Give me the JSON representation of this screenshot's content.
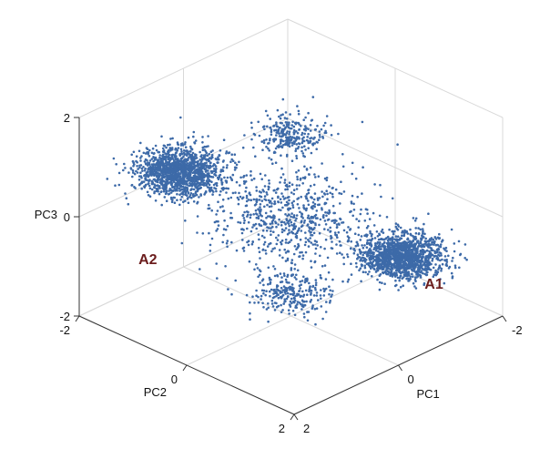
{
  "chart_data": {
    "type": "scatter",
    "projection": "3d",
    "title": "",
    "axes": {
      "x": {
        "label": "PC1",
        "range": [
          -2,
          2
        ],
        "ticks": [
          {
            "value": 2,
            "text": "2"
          },
          {
            "value": 0,
            "text": "0"
          },
          {
            "value": -2,
            "text": "-2"
          }
        ]
      },
      "y": {
        "label": "PC2",
        "range": [
          -2,
          2
        ],
        "ticks": [
          {
            "value": -2,
            "text": "-2"
          },
          {
            "value": 0,
            "text": "0"
          },
          {
            "value": 2,
            "text": "2"
          }
        ]
      },
      "z": {
        "label": "PC3",
        "range": [
          -2,
          2
        ],
        "ticks": [
          {
            "value": 2,
            "text": "2"
          },
          {
            "value": 0,
            "text": "0"
          },
          {
            "value": -2,
            "text": "-2"
          }
        ]
      }
    },
    "grid": true,
    "marker_color": "#3d6aa8",
    "annotations": [
      {
        "text": "A1",
        "x": -1.3,
        "y": 1.4,
        "z": -1.4
      },
      {
        "text": "A2",
        "x": 1.2,
        "y": -1.5,
        "z": -1.1
      }
    ],
    "clusters": [
      {
        "center": [
          -1.05,
          1.05,
          -0.8
        ],
        "spread": [
          0.28,
          0.28,
          0.12
        ],
        "count": 1400
      },
      {
        "center": [
          1.05,
          -1.05,
          0.9
        ],
        "spread": [
          0.28,
          0.28,
          0.15
        ],
        "count": 1400
      },
      {
        "center": [
          -0.6,
          -0.6,
          1.05
        ],
        "spread": [
          0.25,
          0.25,
          0.12
        ],
        "count": 260
      },
      {
        "center": [
          0.55,
          0.55,
          -1.0
        ],
        "spread": [
          0.25,
          0.25,
          0.12
        ],
        "count": 260
      },
      {
        "center": [
          0.0,
          0.0,
          0.0
        ],
        "spread": [
          0.55,
          0.55,
          0.35
        ],
        "count": 700
      }
    ]
  }
}
